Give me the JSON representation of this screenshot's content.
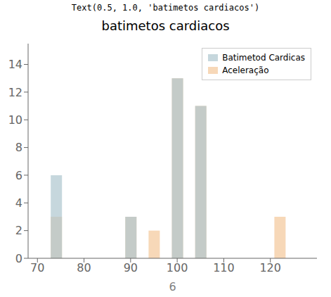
{
  "chart_data": {
    "type": "bar",
    "title": "batimetos cardiacos",
    "subtitle": "Text(0.5, 1.0, 'batimetos cardiacos')",
    "xlabel": "6",
    "x": [
      74,
      90,
      95,
      100,
      105,
      122
    ],
    "series": [
      {
        "name": "Batimetod Cardicas",
        "color": "#aec6cf",
        "values": [
          6,
          3,
          null,
          13,
          11,
          null
        ]
      },
      {
        "name": "Aceleração",
        "color": "#f4c89a",
        "values": [
          3,
          3,
          2,
          13,
          11,
          3
        ]
      }
    ],
    "xlim": [
      68,
      130
    ],
    "ylim": [
      0,
      15.5
    ],
    "xticks": [
      70,
      80,
      90,
      100,
      110,
      120
    ],
    "yticks": [
      0,
      2,
      4,
      6,
      8,
      10,
      12,
      14
    ],
    "grid": false,
    "legend": "upper right"
  }
}
